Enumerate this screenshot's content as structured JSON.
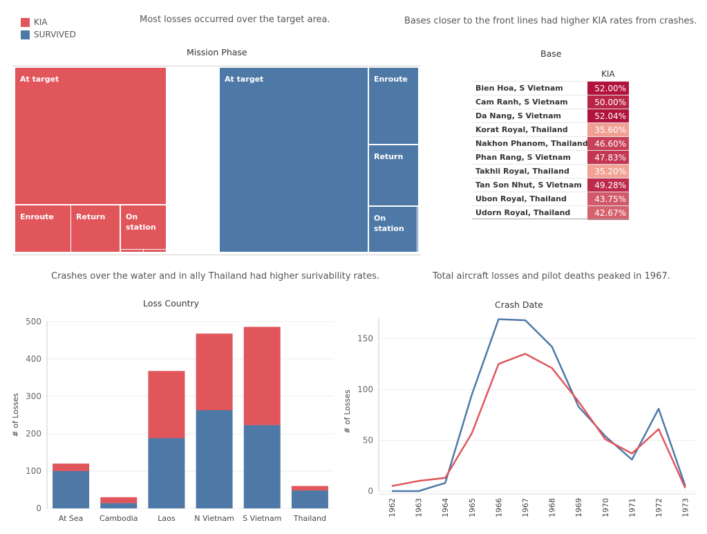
{
  "colors": {
    "kia": "#e0565b",
    "survived": "#4e79a7"
  },
  "legend": [
    {
      "label": "KIA",
      "color": "#e0565b"
    },
    {
      "label": "SURVIVED",
      "color": "#4e79a7"
    }
  ],
  "captions": {
    "mission": "Most losses occurred over the target area.",
    "base": "Bases closer to the front lines had higher KIA rates from crashes.",
    "country": "Crashes over the water and in ally Thailand had higher surivability rates.",
    "date": "Total aircraft losses and pilot deaths peaked in 1967."
  },
  "chart_data": [
    {
      "type": "treemap",
      "title": "Mission Phase",
      "groups": [
        {
          "name": "KIA",
          "cells": [
            {
              "label": "At target"
            },
            {
              "label": "Enroute"
            },
            {
              "label": "Return"
            },
            {
              "label": "On station"
            }
          ]
        },
        {
          "name": "SURVIVED",
          "cells": [
            {
              "label": "At target"
            },
            {
              "label": "Enroute"
            },
            {
              "label": "Return"
            },
            {
              "label": "On station"
            }
          ]
        }
      ]
    },
    {
      "type": "table",
      "title": "Base",
      "column": "KIA",
      "rows": [
        {
          "base": "Bien Hoa, S Vietnam",
          "kia": "52.00%",
          "value": 52.0
        },
        {
          "base": "Cam Ranh, S Vietnam",
          "kia": "50.00%",
          "value": 50.0
        },
        {
          "base": "Da Nang, S Vietnam",
          "kia": "52.04%",
          "value": 52.04
        },
        {
          "base": "Korat Royal, Thailand",
          "kia": "35.60%",
          "value": 35.6
        },
        {
          "base": "Nakhon Phanom, Thailand",
          "kia": "46.60%",
          "value": 46.6
        },
        {
          "base": "Phan Rang, S Vietnam",
          "kia": "47.83%",
          "value": 47.83
        },
        {
          "base": "Takhli Royal, Thailand",
          "kia": "35.20%",
          "value": 35.2
        },
        {
          "base": "Tan Son Nhut, S Vietnam",
          "kia": "49.28%",
          "value": 49.28
        },
        {
          "base": "Ubon Royal, Thailand",
          "kia": "43.75%",
          "value": 43.75
        },
        {
          "base": "Udorn Royal, Thailand",
          "kia": "42.67%",
          "value": 42.67
        }
      ]
    },
    {
      "type": "bar",
      "stacked": true,
      "title": "Loss Country",
      "ylabel": "# of Losses",
      "ylim": [
        0,
        500
      ],
      "yticks": [
        0,
        100,
        200,
        300,
        400,
        500
      ],
      "categories": [
        "At Sea",
        "Cambodia",
        "Laos",
        "N Vietnam",
        "S Vietnam",
        "Thailand"
      ],
      "series": [
        {
          "name": "SURVIVED",
          "values": [
            100,
            14,
            188,
            263,
            223,
            48
          ]
        },
        {
          "name": "KIA",
          "values": [
            20,
            16,
            180,
            205,
            263,
            12
          ]
        }
      ]
    },
    {
      "type": "line",
      "title": "Crash Date",
      "ylabel": "# of Losses",
      "ylim": [
        0,
        170
      ],
      "yticks": [
        0,
        50,
        100,
        150
      ],
      "x": [
        "1962",
        "1963",
        "1964",
        "1965",
        "1966",
        "1967",
        "1968",
        "1969",
        "1970",
        "1971",
        "1972",
        "1973"
      ],
      "series": [
        {
          "name": "SURVIVED",
          "values": [
            0,
            0,
            8,
            95,
            169,
            168,
            142,
            83,
            54,
            31,
            81,
            5
          ]
        },
        {
          "name": "KIA",
          "values": [
            5,
            10,
            13,
            57,
            125,
            135,
            121,
            88,
            51,
            37,
            61,
            3
          ]
        }
      ]
    }
  ]
}
